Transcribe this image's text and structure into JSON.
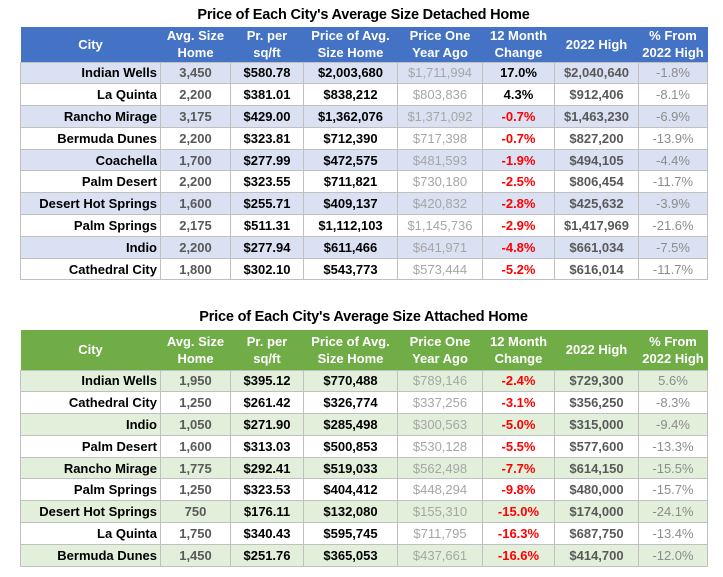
{
  "colors": {
    "detached_header": "#4472C4",
    "detached_band": "#D9E1F2",
    "attached_header": "#70AD47",
    "attached_band": "#E2EFDA",
    "negative": "#FF0000"
  },
  "headers": [
    [
      "City",
      ""
    ],
    [
      "Avg. Size",
      "Home"
    ],
    [
      "Pr. per",
      "sq/ft"
    ],
    [
      "Price of Avg.",
      "Size Home"
    ],
    [
      "Price One",
      "Year Ago"
    ],
    [
      "12 Month",
      "Change"
    ],
    [
      "2022 High",
      ""
    ],
    [
      "% From",
      "2022 High"
    ]
  ],
  "detached": {
    "title": "Price of Each City's Average Size Detached Home",
    "rows": [
      [
        "Indian Wells",
        "3,450",
        "$580.78",
        "$2,003,680",
        "$1,711,994",
        "17.0%",
        "$2,040,640",
        "-1.8%"
      ],
      [
        "La Quinta",
        "2,200",
        "$381.01",
        "$838,212",
        "$803,836",
        "4.3%",
        "$912,406",
        "-8.1%"
      ],
      [
        "Rancho Mirage",
        "3,175",
        "$429.00",
        "$1,362,076",
        "$1,371,092",
        "-0.7%",
        "$1,463,230",
        "-6.9%"
      ],
      [
        "Bermuda Dunes",
        "2,200",
        "$323.81",
        "$712,390",
        "$717,398",
        "-0.7%",
        "$827,200",
        "-13.9%"
      ],
      [
        "Coachella",
        "1,700",
        "$277.99",
        "$472,575",
        "$481,593",
        "-1.9%",
        "$494,105",
        "-4.4%"
      ],
      [
        "Palm Desert",
        "2,200",
        "$323.55",
        "$711,821",
        "$730,180",
        "-2.5%",
        "$806,454",
        "-11.7%"
      ],
      [
        "Desert Hot Springs",
        "1,600",
        "$255.71",
        "$409,137",
        "$420,832",
        "-2.8%",
        "$425,632",
        "-3.9%"
      ],
      [
        "Palm Springs",
        "2,175",
        "$511.31",
        "$1,112,103",
        "$1,145,736",
        "-2.9%",
        "$1,417,969",
        "-21.6%"
      ],
      [
        "Indio",
        "2,200",
        "$277.94",
        "$611,466",
        "$641,971",
        "-4.8%",
        "$661,034",
        "-7.5%"
      ],
      [
        "Cathedral City",
        "1,800",
        "$302.10",
        "$543,773",
        "$573,444",
        "-5.2%",
        "$616,014",
        "-11.7%"
      ]
    ]
  },
  "attached": {
    "title": "Price of Each City's Average Size Attached Home",
    "rows": [
      [
        "Indian Wells",
        "1,950",
        "$395.12",
        "$770,488",
        "$789,146",
        "-2.4%",
        "$729,300",
        "5.6%"
      ],
      [
        "Cathedral City",
        "1,250",
        "$261.42",
        "$326,774",
        "$337,256",
        "-3.1%",
        "$356,250",
        "-8.3%"
      ],
      [
        "Indio",
        "1,050",
        "$271.90",
        "$285,498",
        "$300,563",
        "-5.0%",
        "$315,000",
        "-9.4%"
      ],
      [
        "Palm Desert",
        "1,600",
        "$313.03",
        "$500,853",
        "$530,128",
        "-5.5%",
        "$577,600",
        "-13.3%"
      ],
      [
        "Rancho Mirage",
        "1,775",
        "$292.41",
        "$519,033",
        "$562,498",
        "-7.7%",
        "$614,150",
        "-15.5%"
      ],
      [
        "Palm Springs",
        "1,250",
        "$323.53",
        "$404,412",
        "$448,294",
        "-9.8%",
        "$480,000",
        "-15.7%"
      ],
      [
        "Desert Hot Springs",
        "750",
        "$176.11",
        "$132,080",
        "$155,310",
        "-15.0%",
        "$174,000",
        "-24.1%"
      ],
      [
        "La Quinta",
        "1,750",
        "$340.43",
        "$595,745",
        "$711,795",
        "-16.3%",
        "$687,750",
        "-13.4%"
      ],
      [
        "Bermuda Dunes",
        "1,450",
        "$251.76",
        "$365,053",
        "$437,661",
        "-16.6%",
        "$414,700",
        "-12.0%"
      ]
    ]
  }
}
